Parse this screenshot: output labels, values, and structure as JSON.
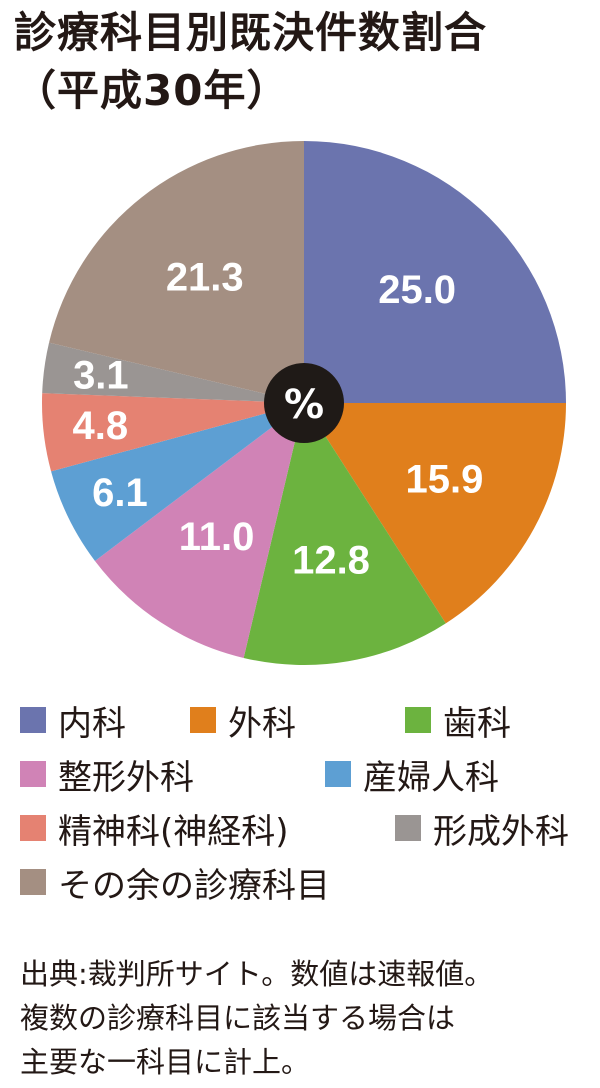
{
  "title": {
    "line1": "診療科目別既決件数割合",
    "line2": "（平成30年）"
  },
  "unit": "%",
  "chart_data": {
    "type": "pie",
    "title": "診療科目別既決件数割合（平成30年）",
    "unit": "%",
    "start": "12 o'clock, clockwise",
    "slices": [
      {
        "name": "内科",
        "value": 25.0,
        "label": "25.0",
        "color": "#6b74ae"
      },
      {
        "name": "外科",
        "value": 15.9,
        "label": "15.9",
        "color": "#e07f1c"
      },
      {
        "name": "歯科",
        "value": 12.8,
        "label": "12.8",
        "color": "#6cb33f"
      },
      {
        "name": "整形外科",
        "value": 11.0,
        "label": "11.0",
        "color": "#d083b6"
      },
      {
        "name": "産婦人科",
        "value": 6.1,
        "label": "6.1",
        "color": "#5d9fd3"
      },
      {
        "name": "精神科(神経科)",
        "value": 4.8,
        "label": "4.8",
        "color": "#e58272"
      },
      {
        "name": "形成外科",
        "value": 3.1,
        "label": "3.1",
        "color": "#9a9593"
      },
      {
        "name": "その余の診療科目",
        "value": 21.3,
        "label": "21.3",
        "color": "#a48f82"
      }
    ]
  },
  "source": {
    "line1": "出典:裁判所サイト。数値は速報値。",
    "line2": "複数の診療科目に該当する場合は",
    "line3": "主要な一科目に計上。"
  }
}
